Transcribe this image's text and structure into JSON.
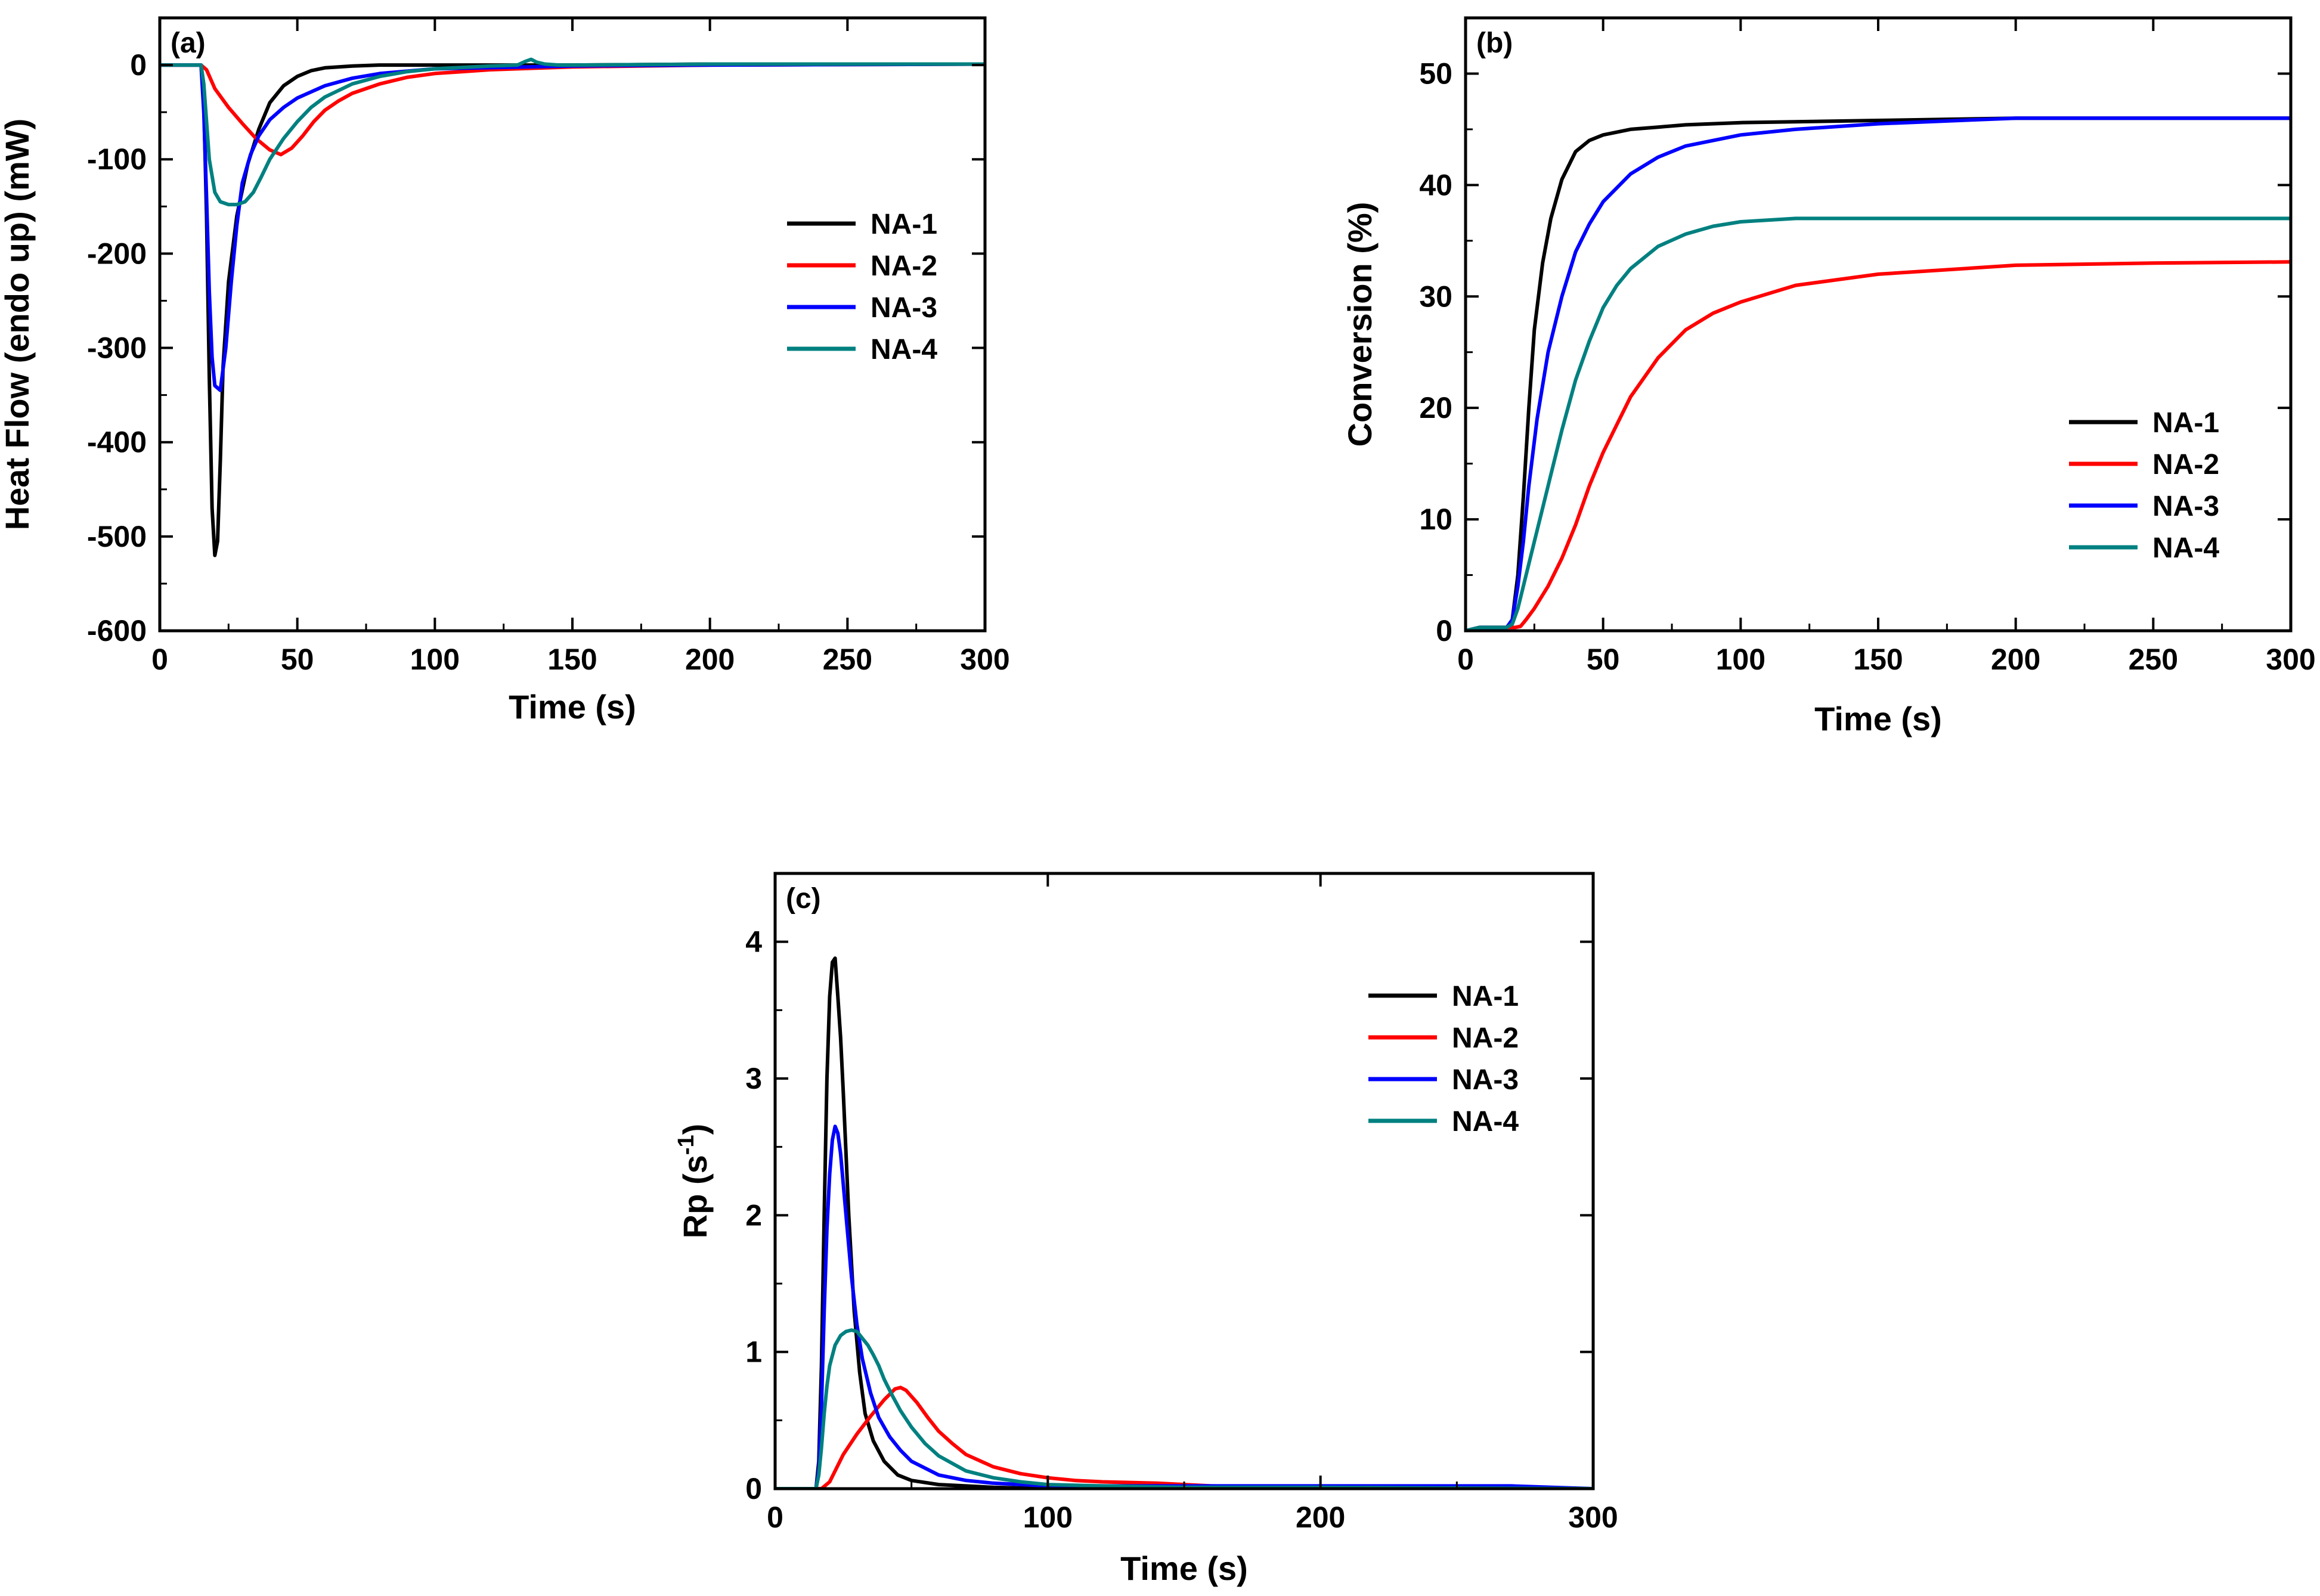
{
  "colors": {
    "NA-1": "#000000",
    "NA-2": "#ff0000",
    "NA-3": "#0000ff",
    "NA-4": "#008080"
  },
  "chart_data": [
    {
      "id": "a",
      "type": "line",
      "panel_label": "(a)",
      "xlabel": "Time (s)",
      "ylabel": "Heat Flow (endo up) (mW)",
      "xlim": [
        0,
        300
      ],
      "ylim": [
        -600,
        50
      ],
      "xticks": [
        0,
        50,
        100,
        150,
        200,
        250,
        300
      ],
      "yticks": [
        -600,
        -500,
        -400,
        -300,
        -200,
        -100,
        0
      ],
      "legend_position": "center-right",
      "series": [
        {
          "name": "NA-1",
          "x": [
            0,
            15,
            16,
            17,
            18,
            19,
            20,
            21,
            22,
            23,
            25,
            28,
            32,
            36,
            40,
            45,
            50,
            55,
            60,
            70,
            80,
            100,
            150,
            200,
            300
          ],
          "y": [
            0,
            0,
            -40,
            -160,
            -330,
            -470,
            -520,
            -505,
            -420,
            -320,
            -230,
            -160,
            -105,
            -68,
            -40,
            -22,
            -12,
            -6,
            -3,
            -1,
            0,
            0,
            0,
            1,
            1
          ]
        },
        {
          "name": "NA-2",
          "x": [
            0,
            15,
            17,
            20,
            25,
            30,
            35,
            40,
            44,
            48,
            52,
            56,
            60,
            65,
            70,
            80,
            90,
            100,
            120,
            150,
            200,
            300
          ],
          "y": [
            0,
            0,
            -5,
            -25,
            -45,
            -62,
            -78,
            -90,
            -95,
            -88,
            -75,
            -60,
            -48,
            -38,
            -30,
            -20,
            -13,
            -9,
            -5,
            -2,
            0,
            1
          ]
        },
        {
          "name": "NA-3",
          "x": [
            0,
            15,
            16,
            17,
            18,
            19,
            20,
            22,
            24,
            26,
            28,
            30,
            33,
            36,
            40,
            45,
            50,
            60,
            70,
            80,
            100,
            150,
            200,
            300
          ],
          "y": [
            0,
            0,
            -50,
            -140,
            -240,
            -310,
            -340,
            -345,
            -300,
            -230,
            -170,
            -125,
            -95,
            -75,
            -58,
            -45,
            -35,
            -22,
            -14,
            -9,
            -4,
            -1,
            0,
            1
          ]
        },
        {
          "name": "NA-4",
          "x": [
            0,
            15,
            16,
            17,
            18,
            20,
            22,
            25,
            28,
            31,
            34,
            37,
            40,
            45,
            50,
            55,
            60,
            70,
            80,
            90,
            100,
            120,
            130,
            133,
            135,
            137,
            140,
            145,
            150,
            200,
            300
          ],
          "y": [
            0,
            0,
            -20,
            -60,
            -100,
            -135,
            -145,
            -148,
            -148,
            -145,
            -135,
            -118,
            -100,
            -78,
            -60,
            -45,
            -34,
            -20,
            -12,
            -7,
            -4,
            -1,
            0,
            4,
            6,
            3,
            1,
            0,
            0,
            1,
            1
          ]
        }
      ]
    },
    {
      "id": "b",
      "type": "line",
      "panel_label": "(b)",
      "xlabel": "Time (s)",
      "ylabel": "Conversion (%)",
      "xlim": [
        0,
        300
      ],
      "ylim": [
        0,
        55
      ],
      "xticks": [
        0,
        50,
        100,
        150,
        200,
        250,
        300
      ],
      "yticks": [
        0,
        10,
        20,
        30,
        40,
        50
      ],
      "legend_position": "bottom-right",
      "series": [
        {
          "name": "NA-1",
          "x": [
            0,
            5,
            15,
            17,
            19,
            21,
            23,
            25,
            28,
            31,
            35,
            40,
            45,
            50,
            60,
            70,
            80,
            100,
            150,
            200,
            300
          ],
          "y": [
            0,
            0.3,
            0.3,
            1,
            5,
            12,
            20,
            27,
            33,
            37,
            40.5,
            43,
            44,
            44.5,
            45,
            45.2,
            45.4,
            45.6,
            45.8,
            46,
            46
          ]
        },
        {
          "name": "NA-2",
          "x": [
            0,
            5,
            18,
            20,
            22,
            25,
            30,
            35,
            40,
            45,
            50,
            55,
            60,
            70,
            80,
            90,
            100,
            120,
            150,
            200,
            250,
            300
          ],
          "y": [
            0,
            0.3,
            0.3,
            0.4,
            1,
            2,
            4,
            6.5,
            9.5,
            13,
            16,
            18.5,
            21,
            24.5,
            27,
            28.5,
            29.5,
            31,
            32,
            32.8,
            33,
            33.1
          ]
        },
        {
          "name": "NA-3",
          "x": [
            0,
            5,
            15,
            17,
            19,
            21,
            23,
            26,
            30,
            35,
            40,
            45,
            50,
            60,
            70,
            80,
            100,
            120,
            150,
            200,
            250,
            300
          ],
          "y": [
            0,
            0.3,
            0.3,
            1,
            4,
            8,
            13,
            19,
            25,
            30,
            34,
            36.5,
            38.5,
            41,
            42.5,
            43.5,
            44.5,
            45,
            45.5,
            46,
            46,
            46
          ]
        },
        {
          "name": "NA-4",
          "x": [
            0,
            5,
            15,
            17,
            19,
            22,
            25,
            28,
            31,
            35,
            40,
            45,
            50,
            55,
            60,
            70,
            80,
            90,
            100,
            120,
            150,
            200,
            300
          ],
          "y": [
            0,
            0.3,
            0.3,
            0.6,
            2,
            5,
            8,
            11,
            14,
            18,
            22.5,
            26,
            29,
            31,
            32.5,
            34.5,
            35.6,
            36.3,
            36.7,
            37,
            37,
            37,
            37
          ]
        }
      ]
    },
    {
      "id": "c",
      "type": "line",
      "panel_label": "(c)",
      "xlabel": "Time (s)",
      "ylabel": "Rp (s",
      "ylabel_sup": "-1",
      "ylabel_end": ")",
      "xlim": [
        0,
        300
      ],
      "ylim": [
        0,
        4.5
      ],
      "xticks": [
        0,
        100,
        200,
        300
      ],
      "yticks": [
        0,
        1,
        2,
        3,
        4
      ],
      "legend_position": "top-right",
      "series": [
        {
          "name": "NA-1",
          "x": [
            0,
            15,
            16,
            17,
            18,
            19,
            20,
            21,
            22,
            23,
            24,
            25,
            27,
            29,
            31,
            33,
            36,
            40,
            45,
            50,
            60,
            70,
            80,
            100,
            150,
            300
          ],
          "y": [
            0,
            0,
            0.2,
            0.9,
            2.0,
            3.0,
            3.6,
            3.85,
            3.88,
            3.6,
            3.3,
            2.9,
            2.0,
            1.3,
            0.85,
            0.55,
            0.35,
            0.2,
            0.1,
            0.06,
            0.03,
            0.02,
            0.01,
            0,
            0,
            0
          ]
        },
        {
          "name": "NA-2",
          "x": [
            0,
            17,
            20,
            25,
            30,
            35,
            40,
            44,
            46,
            48,
            52,
            56,
            60,
            65,
            70,
            80,
            90,
            100,
            110,
            120,
            140,
            160,
            200,
            250,
            300
          ],
          "y": [
            0,
            0,
            0.05,
            0.25,
            0.4,
            0.53,
            0.65,
            0.73,
            0.74,
            0.72,
            0.63,
            0.52,
            0.42,
            0.33,
            0.25,
            0.16,
            0.11,
            0.08,
            0.06,
            0.05,
            0.04,
            0.02,
            0.01,
            0.01,
            0
          ]
        },
        {
          "name": "NA-3",
          "x": [
            0,
            15,
            16,
            17,
            18,
            19,
            20,
            21,
            22,
            23,
            24,
            26,
            28,
            30,
            32,
            35,
            38,
            42,
            46,
            50,
            60,
            70,
            80,
            100,
            120,
            150,
            200,
            270,
            300
          ],
          "y": [
            0,
            0,
            0.15,
            0.6,
            1.3,
            1.9,
            2.3,
            2.55,
            2.65,
            2.6,
            2.45,
            2.0,
            1.55,
            1.2,
            0.95,
            0.7,
            0.52,
            0.38,
            0.28,
            0.2,
            0.1,
            0.06,
            0.04,
            0.02,
            0.02,
            0.02,
            0.02,
            0.02,
            0
          ]
        },
        {
          "name": "NA-4",
          "x": [
            0,
            15,
            16,
            17,
            18,
            19,
            20,
            22,
            24,
            26,
            28,
            30,
            32,
            34,
            36,
            38,
            40,
            43,
            46,
            50,
            55,
            60,
            70,
            80,
            90,
            100,
            120,
            150,
            200,
            300
          ],
          "y": [
            0,
            0,
            0.1,
            0.3,
            0.55,
            0.75,
            0.9,
            1.05,
            1.12,
            1.15,
            1.16,
            1.15,
            1.1,
            1.05,
            0.98,
            0.9,
            0.8,
            0.68,
            0.57,
            0.45,
            0.33,
            0.24,
            0.13,
            0.08,
            0.05,
            0.03,
            0.02,
            0.01,
            0.01,
            0
          ]
        }
      ]
    }
  ]
}
